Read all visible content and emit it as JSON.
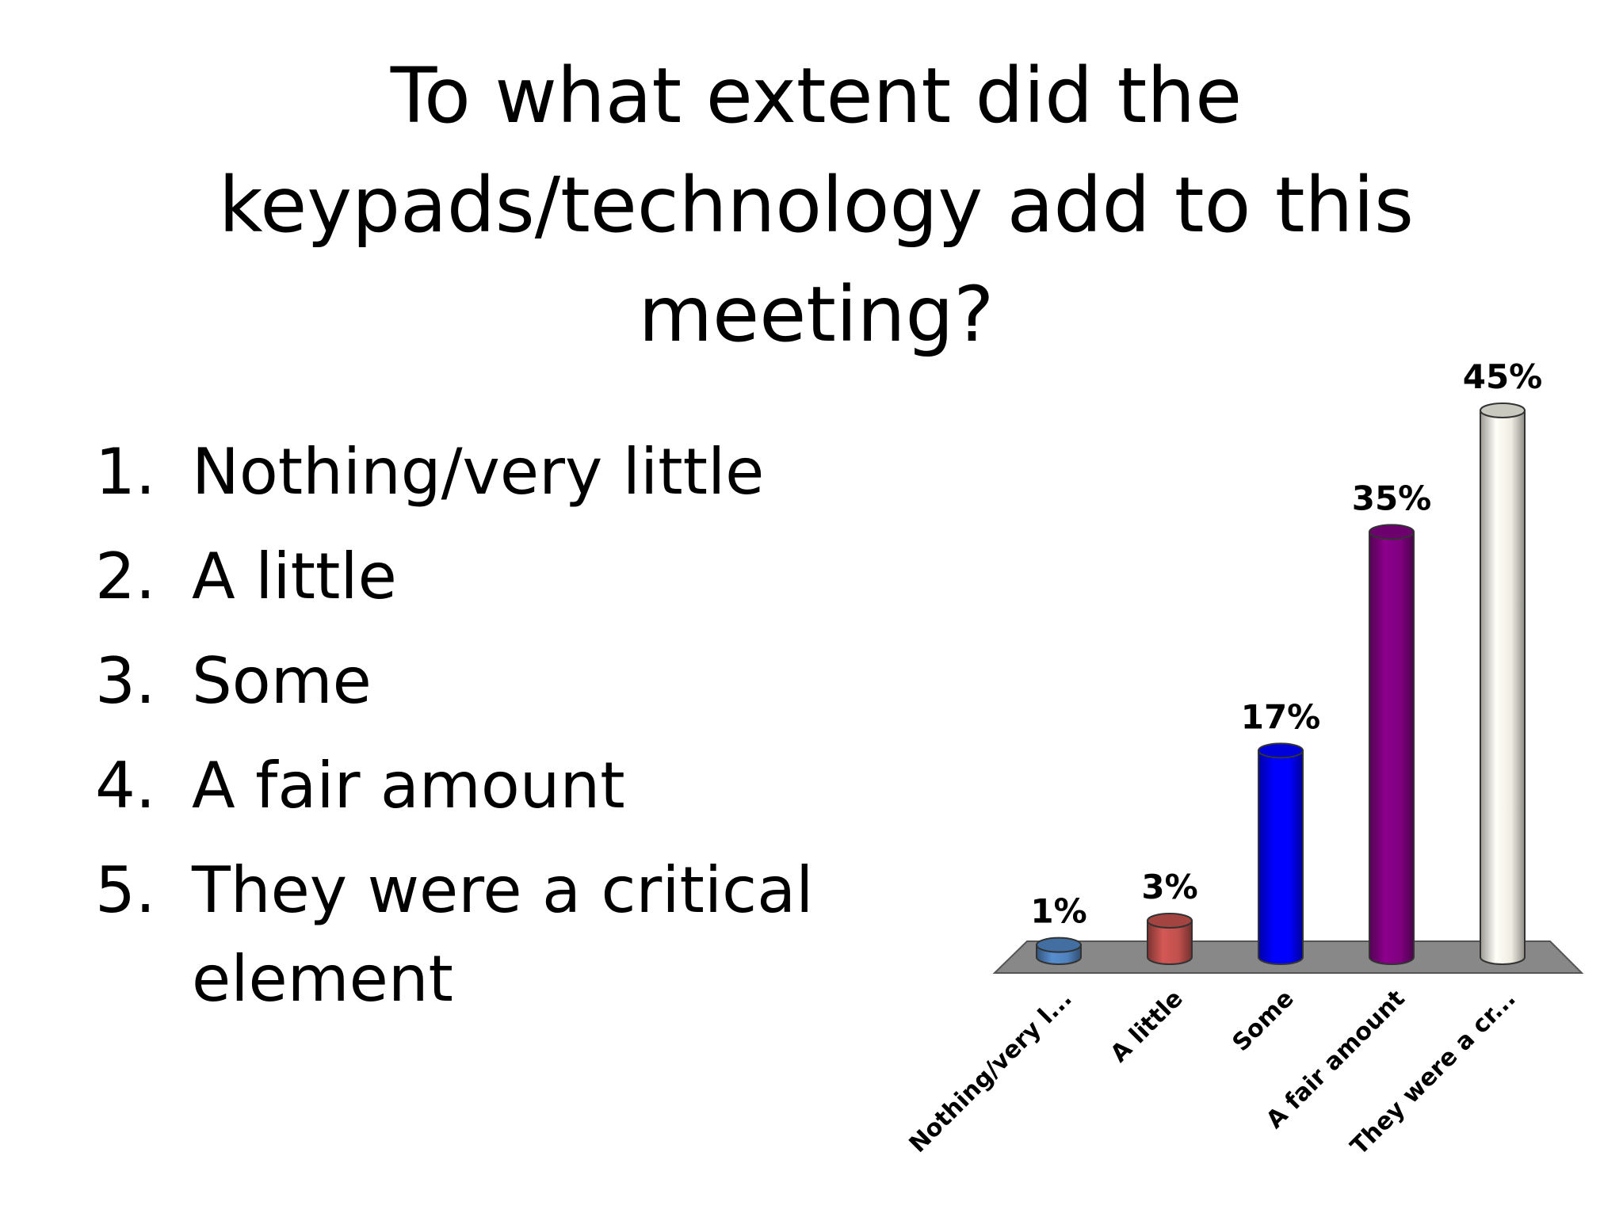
{
  "slide": {
    "title_lines": [
      "To what extent did the",
      "keypads/technology add to this",
      "meeting?"
    ],
    "options": [
      {
        "num": "1.",
        "lines": [
          "Nothing/very little"
        ]
      },
      {
        "num": "2.",
        "lines": [
          "A little"
        ]
      },
      {
        "num": "3.",
        "lines": [
          "Some"
        ]
      },
      {
        "num": "4.",
        "lines": [
          "A fair amount"
        ]
      },
      {
        "num": "5.",
        "lines": [
          "They were a critical",
          "element"
        ]
      }
    ]
  },
  "chart_data": {
    "type": "bar",
    "categories": [
      "Nothing/very l...",
      "A little",
      "Some",
      "A fair amount",
      "They were a cr..."
    ],
    "values": [
      1,
      3,
      17,
      35,
      45
    ],
    "value_labels": [
      "1%",
      "3%",
      "17%",
      "35%",
      "45%"
    ],
    "colors": [
      "#4f81bd",
      "#c0504d",
      "#0000ff",
      "#7f007f",
      "#eeece1"
    ],
    "ylim": [
      0,
      45
    ],
    "grid": false,
    "legend": "none"
  }
}
